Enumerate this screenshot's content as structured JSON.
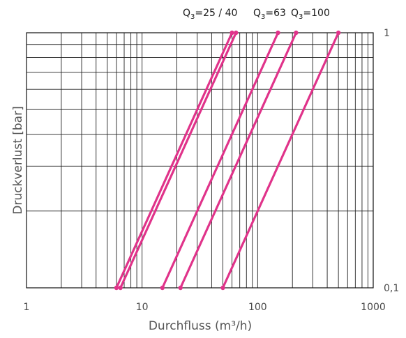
{
  "chart_data": {
    "type": "line",
    "xscale": "log",
    "yscale": "log",
    "xlim": [
      1,
      1000
    ],
    "ylim": [
      0.1,
      1
    ],
    "xlabel": "Durchfluss (m³/h)",
    "ylabel": "Druckverlust [bar]",
    "x_tick_labels": [
      "1",
      "10",
      "100",
      "1000"
    ],
    "y_tick_labels": [
      "0,1",
      "1"
    ],
    "grid": true,
    "line_color": "#e0338a",
    "series_labels": [
      {
        "base": "Q",
        "sub": "3",
        "rest": "=25 / 40"
      },
      {
        "base": "Q",
        "sub": "3",
        "rest": "=63"
      },
      {
        "base": "Q",
        "sub": "3",
        "rest": "=100"
      }
    ],
    "series": [
      {
        "x": [
          6.0,
          60
        ],
        "y": [
          0.1,
          1
        ]
      },
      {
        "x": [
          6.5,
          65
        ],
        "y": [
          0.1,
          1
        ]
      },
      {
        "x": [
          15,
          150
        ],
        "y": [
          0.1,
          1
        ]
      },
      {
        "x": [
          21.5,
          215
        ],
        "y": [
          0.1,
          1
        ]
      },
      {
        "x": [
          50,
          500
        ],
        "y": [
          0.1,
          1
        ]
      }
    ]
  }
}
